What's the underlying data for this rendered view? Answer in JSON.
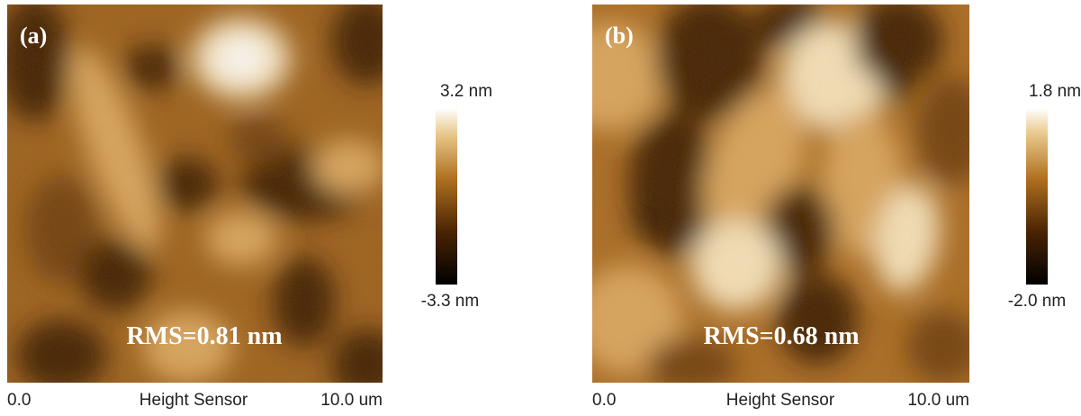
{
  "panels": [
    {
      "label": "(a)",
      "rms": "RMS=0.81 nm",
      "scale_max": "3.2 nm",
      "scale_min": "-3.3 nm",
      "axis_start": "0.0",
      "axis_title": "Height Sensor",
      "axis_end": "10.0 um"
    },
    {
      "label": "(b)",
      "rms": "RMS=0.68 nm",
      "scale_max": "1.8 nm",
      "scale_min": "-2.0 nm",
      "axis_start": "0.0",
      "axis_title": "Height Sensor",
      "axis_end": "10.0 um"
    }
  ]
}
